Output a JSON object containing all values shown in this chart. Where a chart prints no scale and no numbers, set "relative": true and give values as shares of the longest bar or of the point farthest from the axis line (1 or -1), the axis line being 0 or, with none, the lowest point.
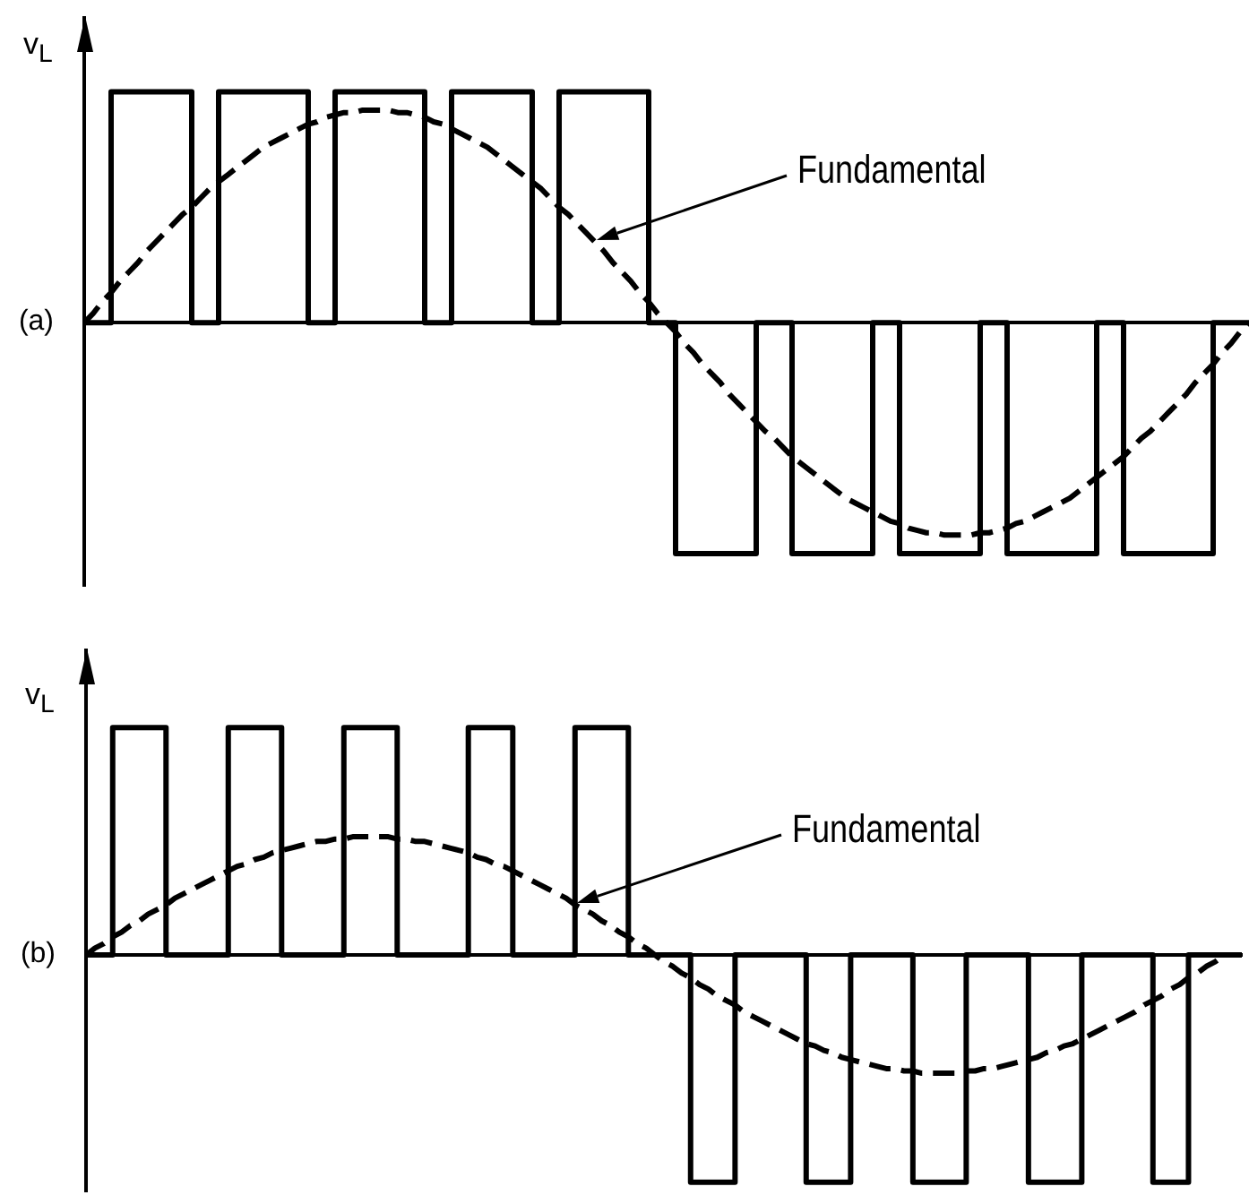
{
  "chart_data": [
    {
      "type": "step",
      "title": "(a)",
      "ylabel": "v$_{L}$",
      "relative": true,
      "tick_labels": false,
      "categories": [
        null,
        null,
        null,
        null,
        null,
        null,
        null,
        null,
        null,
        null,
        null,
        null,
        null,
        null,
        null,
        null,
        null,
        null,
        null,
        null,
        null,
        null,
        null,
        null,
        null,
        null,
        null,
        null,
        null,
        null,
        null,
        null,
        null,
        null,
        null,
        null,
        null,
        null,
        null,
        null,
        null,
        null,
        null,
        null,
        null,
        null,
        null,
        null,
        null,
        null,
        null,
        null,
        null,
        null,
        null,
        null,
        null,
        null,
        null,
        null,
        null,
        null,
        null,
        null,
        null,
        null,
        null,
        null,
        null,
        null,
        null,
        null,
        null,
        null,
        null,
        null,
        null,
        null,
        null,
        null,
        null,
        null,
        null,
        null,
        null,
        null,
        null,
        null,
        null,
        null,
        null,
        null,
        null,
        null,
        null,
        null,
        null,
        null,
        null,
        null,
        null,
        null,
        null,
        null,
        null,
        null,
        null,
        null,
        null,
        null,
        null,
        null,
        null,
        null,
        null,
        null,
        null,
        null,
        null,
        null,
        null,
        null,
        null,
        null,
        null,
        null,
        null,
        null,
        null,
        null,
        null
      ],
      "series": [
        {
          "color": "#000000",
          "values": [
            0,
            0,
            0,
            1,
            1,
            1,
            1,
            1,
            1,
            1,
            1,
            1,
            0,
            0,
            0,
            1,
            1,
            1,
            1,
            1,
            1,
            1,
            1,
            1,
            1,
            0,
            0,
            0,
            1,
            1,
            1,
            1,
            1,
            1,
            1,
            1,
            1,
            1,
            0,
            0,
            0,
            1,
            1,
            1,
            1,
            1,
            1,
            1,
            1,
            1,
            0,
            0,
            0,
            1,
            1,
            1,
            1,
            1,
            1,
            1,
            1,
            1,
            1,
            0,
            0,
            0,
            -1,
            -1,
            -1,
            -1,
            -1,
            -1,
            -1,
            -1,
            -1,
            0,
            0,
            0,
            0,
            -1,
            -1,
            -1,
            -1,
            -1,
            -1,
            -1,
            -1,
            -1,
            0,
            0,
            0,
            -1,
            -1,
            -1,
            -1,
            -1,
            -1,
            -1,
            -1,
            -1,
            0,
            0,
            0,
            -1,
            -1,
            -1,
            -1,
            -1,
            -1,
            -1,
            -1,
            -1,
            -1,
            0,
            0,
            0,
            -1,
            -1,
            -1,
            -1,
            -1,
            -1,
            -1,
            -1,
            -1,
            -1,
            0,
            0,
            0,
            0,
            0
          ]
        },
        {
          "type": "line",
          "name": "Fundamental",
          "color": "#000000",
          "line_style": "dashed",
          "values": [
            0,
            0.04,
            0.09,
            0.13,
            0.18,
            0.22,
            0.26,
            0.31,
            0.35,
            0.39,
            0.43,
            0.47,
            0.5,
            0.54,
            0.58,
            0.61,
            0.64,
            0.67,
            0.7,
            0.73,
            0.76,
            0.78,
            0.8,
            0.82,
            0.84,
            0.86,
            0.87,
            0.89,
            0.9,
            0.91,
            0.91,
            0.92,
            0.92,
            0.92,
            0.92,
            0.91,
            0.91,
            0.9,
            0.89,
            0.87,
            0.86,
            0.84,
            0.82,
            0.8,
            0.78,
            0.76,
            0.73,
            0.7,
            0.67,
            0.64,
            0.61,
            0.58,
            0.54,
            0.5,
            0.47,
            0.43,
            0.39,
            0.35,
            0.31,
            0.26,
            0.22,
            0.18,
            0.13,
            0.09,
            0.04,
            0,
            -0.04,
            -0.09,
            -0.13,
            -0.18,
            -0.22,
            -0.26,
            -0.31,
            -0.35,
            -0.39,
            -0.43,
            -0.47,
            -0.5,
            -0.54,
            -0.58,
            -0.61,
            -0.64,
            -0.67,
            -0.7,
            -0.73,
            -0.76,
            -0.78,
            -0.8,
            -0.82,
            -0.84,
            -0.86,
            -0.87,
            -0.89,
            -0.9,
            -0.91,
            -0.91,
            -0.92,
            -0.92,
            -0.92,
            -0.92,
            -0.91,
            -0.91,
            -0.9,
            -0.89,
            -0.87,
            -0.86,
            -0.84,
            -0.82,
            -0.8,
            -0.78,
            -0.76,
            -0.73,
            -0.7,
            -0.67,
            -0.64,
            -0.61,
            -0.58,
            -0.54,
            -0.5,
            -0.47,
            -0.43,
            -0.39,
            -0.35,
            -0.31,
            -0.26,
            -0.22,
            -0.18,
            -0.13,
            -0.09,
            -0.04,
            0
          ]
        }
      ]
    },
    {
      "type": "step",
      "title": "(b)",
      "ylabel": "v$_{L}$",
      "relative": true,
      "tick_labels": false,
      "categories": [
        null,
        null,
        null,
        null,
        null,
        null,
        null,
        null,
        null,
        null,
        null,
        null,
        null,
        null,
        null,
        null,
        null,
        null,
        null,
        null,
        null,
        null,
        null,
        null,
        null,
        null,
        null,
        null,
        null,
        null,
        null,
        null,
        null,
        null,
        null,
        null,
        null,
        null,
        null,
        null,
        null,
        null,
        null,
        null,
        null,
        null,
        null,
        null,
        null,
        null,
        null,
        null,
        null,
        null,
        null,
        null,
        null,
        null,
        null,
        null,
        null,
        null,
        null,
        null,
        null,
        null,
        null,
        null,
        null,
        null,
        null,
        null,
        null,
        null,
        null,
        null,
        null,
        null,
        null,
        null,
        null,
        null,
        null,
        null,
        null,
        null,
        null,
        null,
        null,
        null,
        null,
        null,
        null,
        null,
        null,
        null,
        null,
        null,
        null,
        null,
        null,
        null,
        null,
        null,
        null,
        null,
        null,
        null,
        null,
        null,
        null,
        null,
        null,
        null,
        null,
        null,
        null,
        null,
        null,
        null,
        null,
        null,
        null,
        null,
        null,
        null,
        null,
        null,
        null,
        null,
        null
      ],
      "series": [
        {
          "color": "#000000",
          "values": [
            0,
            0,
            0,
            1,
            1,
            1,
            1,
            1,
            1,
            0,
            0,
            0,
            0,
            0,
            0,
            0,
            1,
            1,
            1,
            1,
            1,
            1,
            0,
            0,
            0,
            0,
            0,
            0,
            0,
            1,
            1,
            1,
            1,
            1,
            1,
            0,
            0,
            0,
            0,
            0,
            0,
            0,
            0,
            1,
            1,
            1,
            1,
            1,
            0,
            0,
            0,
            0,
            0,
            0,
            0,
            1,
            1,
            1,
            1,
            1,
            1,
            0,
            0,
            0,
            0,
            0,
            0,
            0,
            -1,
            -1,
            -1,
            -1,
            -1,
            0,
            0,
            0,
            0,
            0,
            0,
            0,
            0,
            -1,
            -1,
            -1,
            -1,
            -1,
            0,
            0,
            0,
            0,
            0,
            0,
            0,
            -1,
            -1,
            -1,
            -1,
            -1,
            -1,
            0,
            0,
            0,
            0,
            0,
            0,
            0,
            -1,
            -1,
            -1,
            -1,
            -1,
            -1,
            0,
            0,
            0,
            0,
            0,
            0,
            0,
            0,
            -1,
            -1,
            -1,
            -1,
            0,
            0,
            0,
            0,
            0,
            0,
            0
          ]
        },
        {
          "type": "line",
          "name": "Fundamental",
          "color": "#000000",
          "line_style": "dashed",
          "values": [
            0,
            0.03,
            0.05,
            0.08,
            0.1,
            0.13,
            0.15,
            0.18,
            0.2,
            0.22,
            0.25,
            0.27,
            0.29,
            0.31,
            0.33,
            0.35,
            0.37,
            0.39,
            0.4,
            0.42,
            0.43,
            0.45,
            0.46,
            0.47,
            0.48,
            0.49,
            0.5,
            0.5,
            0.51,
            0.51,
            0.52,
            0.52,
            0.52,
            0.52,
            0.52,
            0.51,
            0.51,
            0.5,
            0.5,
            0.49,
            0.48,
            0.47,
            0.46,
            0.45,
            0.43,
            0.42,
            0.4,
            0.39,
            0.37,
            0.35,
            0.33,
            0.31,
            0.29,
            0.27,
            0.25,
            0.22,
            0.2,
            0.18,
            0.15,
            0.13,
            0.1,
            0.08,
            0.05,
            0.03,
            0,
            -0.03,
            -0.05,
            -0.08,
            -0.1,
            -0.13,
            -0.15,
            -0.18,
            -0.2,
            -0.22,
            -0.25,
            -0.27,
            -0.29,
            -0.31,
            -0.33,
            -0.35,
            -0.37,
            -0.39,
            -0.4,
            -0.42,
            -0.43,
            -0.45,
            -0.46,
            -0.47,
            -0.48,
            -0.49,
            -0.5,
            -0.5,
            -0.51,
            -0.51,
            -0.52,
            -0.52,
            -0.52,
            -0.52,
            -0.52,
            -0.51,
            -0.51,
            -0.5,
            -0.5,
            -0.49,
            -0.48,
            -0.47,
            -0.46,
            -0.45,
            -0.43,
            -0.42,
            -0.4,
            -0.39,
            -0.37,
            -0.35,
            -0.33,
            -0.31,
            -0.29,
            -0.27,
            -0.25,
            -0.22,
            -0.2,
            -0.18,
            -0.15,
            -0.13,
            -0.1,
            -0.08,
            -0.05,
            -0.03,
            0,
            null,
            null
          ]
        }
      ]
    }
  ]
}
